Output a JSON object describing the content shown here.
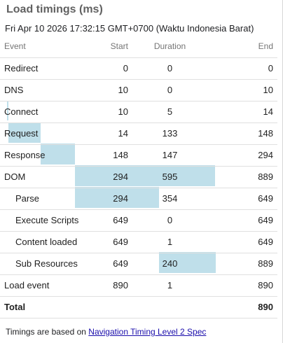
{
  "title": "Load timings (ms)",
  "timestamp": "Fri Apr 10 2026 17:32:15 GMT+0700 (Waktu Indonesia Barat)",
  "columns": {
    "event": "Event",
    "start": "Start",
    "duration": "Duration",
    "end": "End"
  },
  "rows": [
    {
      "event": "Redirect",
      "start": "0",
      "duration": "0",
      "end": "0"
    },
    {
      "event": "DNS",
      "start": "10",
      "duration": "0",
      "end": "10"
    },
    {
      "event": "Connect",
      "start": "10",
      "duration": "5",
      "end": "14"
    },
    {
      "event": "Request",
      "start": "14",
      "duration": "133",
      "end": "148"
    },
    {
      "event": "Response",
      "start": "148",
      "duration": "147",
      "end": "294"
    },
    {
      "event": "DOM",
      "start": "294",
      "duration": "595",
      "end": "889"
    },
    {
      "event": "Parse",
      "start": "294",
      "duration": "354",
      "end": "649"
    },
    {
      "event": "Execute Scripts",
      "start": "649",
      "duration": "0",
      "end": "649"
    },
    {
      "event": "Content loaded",
      "start": "649",
      "duration": "1",
      "end": "649"
    },
    {
      "event": "Sub Resources",
      "start": "649",
      "duration": "240",
      "end": "889"
    },
    {
      "event": "Load event",
      "start": "890",
      "duration": "1",
      "end": "890"
    }
  ],
  "total": {
    "label": "Total",
    "end": "890"
  },
  "footer": {
    "text": "Timings are based on ",
    "link": "Navigation Timing Level 2 Spec"
  },
  "colors": {
    "bar": "#bfdfea",
    "text": "#212121",
    "muted": "#757575",
    "link": "#1a0dab"
  }
}
